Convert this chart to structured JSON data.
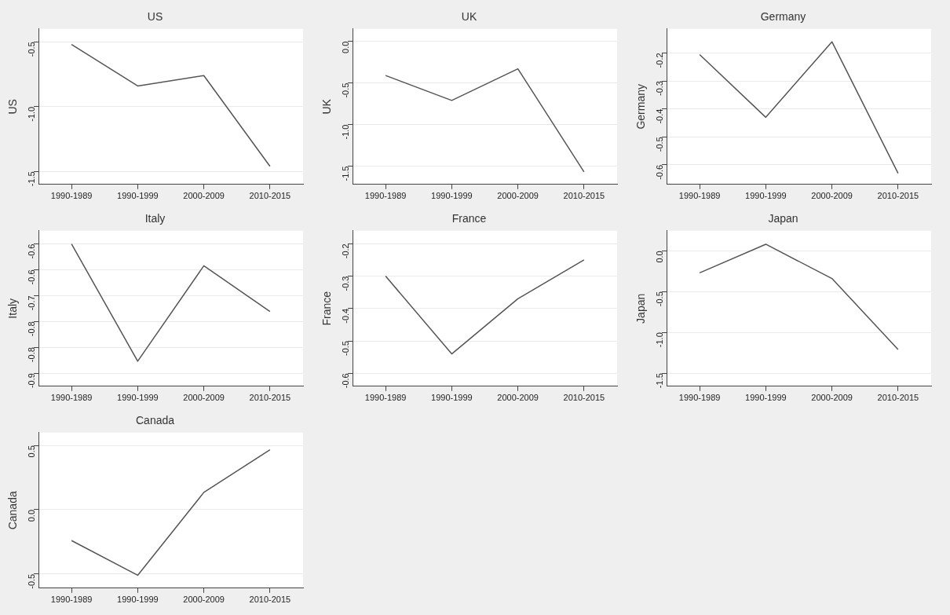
{
  "chart_data": [
    {
      "type": "line",
      "title": "US",
      "ylabel": "US",
      "categories": [
        "1990-1989",
        "1990-1999",
        "2000-2009",
        "2010-2015"
      ],
      "values": [
        -0.52,
        -0.84,
        -0.76,
        -1.46
      ],
      "color": "#555555",
      "ylim": [
        -1.6,
        -0.4
      ],
      "yticks": [
        {
          "value": -1.5,
          "label": "-1.5"
        },
        {
          "value": -1,
          "label": "-1.0"
        },
        {
          "value": -0.5,
          "label": "-0.5"
        }
      ],
      "grid": "y"
    },
    {
      "type": "line",
      "title": "UK",
      "ylabel": "UK",
      "categories": [
        "1990-1989",
        "1990-1999",
        "2000-2009",
        "2010-2015"
      ],
      "values": [
        -0.41,
        -0.71,
        -0.33,
        -1.57
      ],
      "color": "#555555",
      "ylim": [
        -1.72,
        0.15
      ],
      "yticks": [
        {
          "value": -1.5,
          "label": "-1.5"
        },
        {
          "value": -1,
          "label": "-1.0"
        },
        {
          "value": -0.5,
          "label": "-0.5"
        },
        {
          "value": 0,
          "label": "0.0"
        }
      ],
      "grid": "y"
    },
    {
      "type": "line",
      "title": "Germany",
      "ylabel": "Germany",
      "categories": [
        "1990-1989",
        "1990-1999",
        "2000-2009",
        "2010-2015"
      ],
      "values": [
        -0.206,
        -0.43,
        -0.16,
        -0.63
      ],
      "color": "#555555",
      "ylim": [
        -0.67,
        -0.114
      ],
      "yticks": [
        -0.6,
        -0.5,
        -0.4,
        -0.3,
        -0.2
      ],
      "grid": "y"
    },
    {
      "type": "line",
      "title": "Italy",
      "ylabel": "Italy",
      "categories": [
        "1990-1989",
        "1990-1999",
        "2000-2009",
        "2010-2015"
      ],
      "values": [
        -0.575,
        -0.87,
        -0.63,
        -0.745
      ],
      "color": "#555555",
      "ylim": [
        -0.933,
        -0.542
      ],
      "yticks": [
        {
          "value": -0.9,
          "label": "-0.9"
        },
        {
          "value": -0.835,
          "label": "-0.8"
        },
        {
          "value": -0.77,
          "label": "-0.8"
        },
        {
          "value": -0.705,
          "label": "-0.7"
        },
        {
          "value": -0.64,
          "label": "-0.6"
        },
        {
          "value": -0.575,
          "label": "-0.6"
        }
      ],
      "grid": "y"
    },
    {
      "type": "line",
      "title": "France",
      "ylabel": "France",
      "categories": [
        "1990-1989",
        "1990-1999",
        "2000-2009",
        "2010-2015"
      ],
      "values": [
        -0.3,
        -0.54,
        -0.37,
        -0.25
      ],
      "color": "#555555",
      "ylim": [
        -0.64,
        -0.16
      ],
      "yticks": [
        -0.6,
        -0.5,
        -0.4,
        -0.3,
        -0.2
      ],
      "grid": "y"
    },
    {
      "type": "line",
      "title": "Japan",
      "ylabel": "Japan",
      "categories": [
        "1990-1989",
        "1990-1999",
        "2000-2009",
        "2010-2015"
      ],
      "values": [
        -0.27,
        0.08,
        -0.34,
        -1.21
      ],
      "color": "#555555",
      "ylim": [
        -1.66,
        0.245
      ],
      "yticks": [
        {
          "value": -1.5,
          "label": "-1.5"
        },
        {
          "value": -1,
          "label": "-1.0"
        },
        {
          "value": -0.5,
          "label": "-0.5"
        },
        {
          "value": 0,
          "label": "0.0"
        }
      ],
      "grid": "y"
    },
    {
      "type": "line",
      "title": "Canada",
      "ylabel": "Canada",
      "categories": [
        "1990-1989",
        "1990-1999",
        "2000-2009",
        "2010-2015"
      ],
      "values": [
        -0.24,
        -0.51,
        0.135,
        0.466
      ],
      "color": "#555555",
      "ylim": [
        -0.61,
        0.6
      ],
      "yticks": [
        {
          "value": -0.5,
          "label": "-0.5"
        },
        {
          "value": 0,
          "label": "0.0"
        },
        {
          "value": 0.5,
          "label": "0.5"
        }
      ],
      "grid": "y"
    }
  ]
}
